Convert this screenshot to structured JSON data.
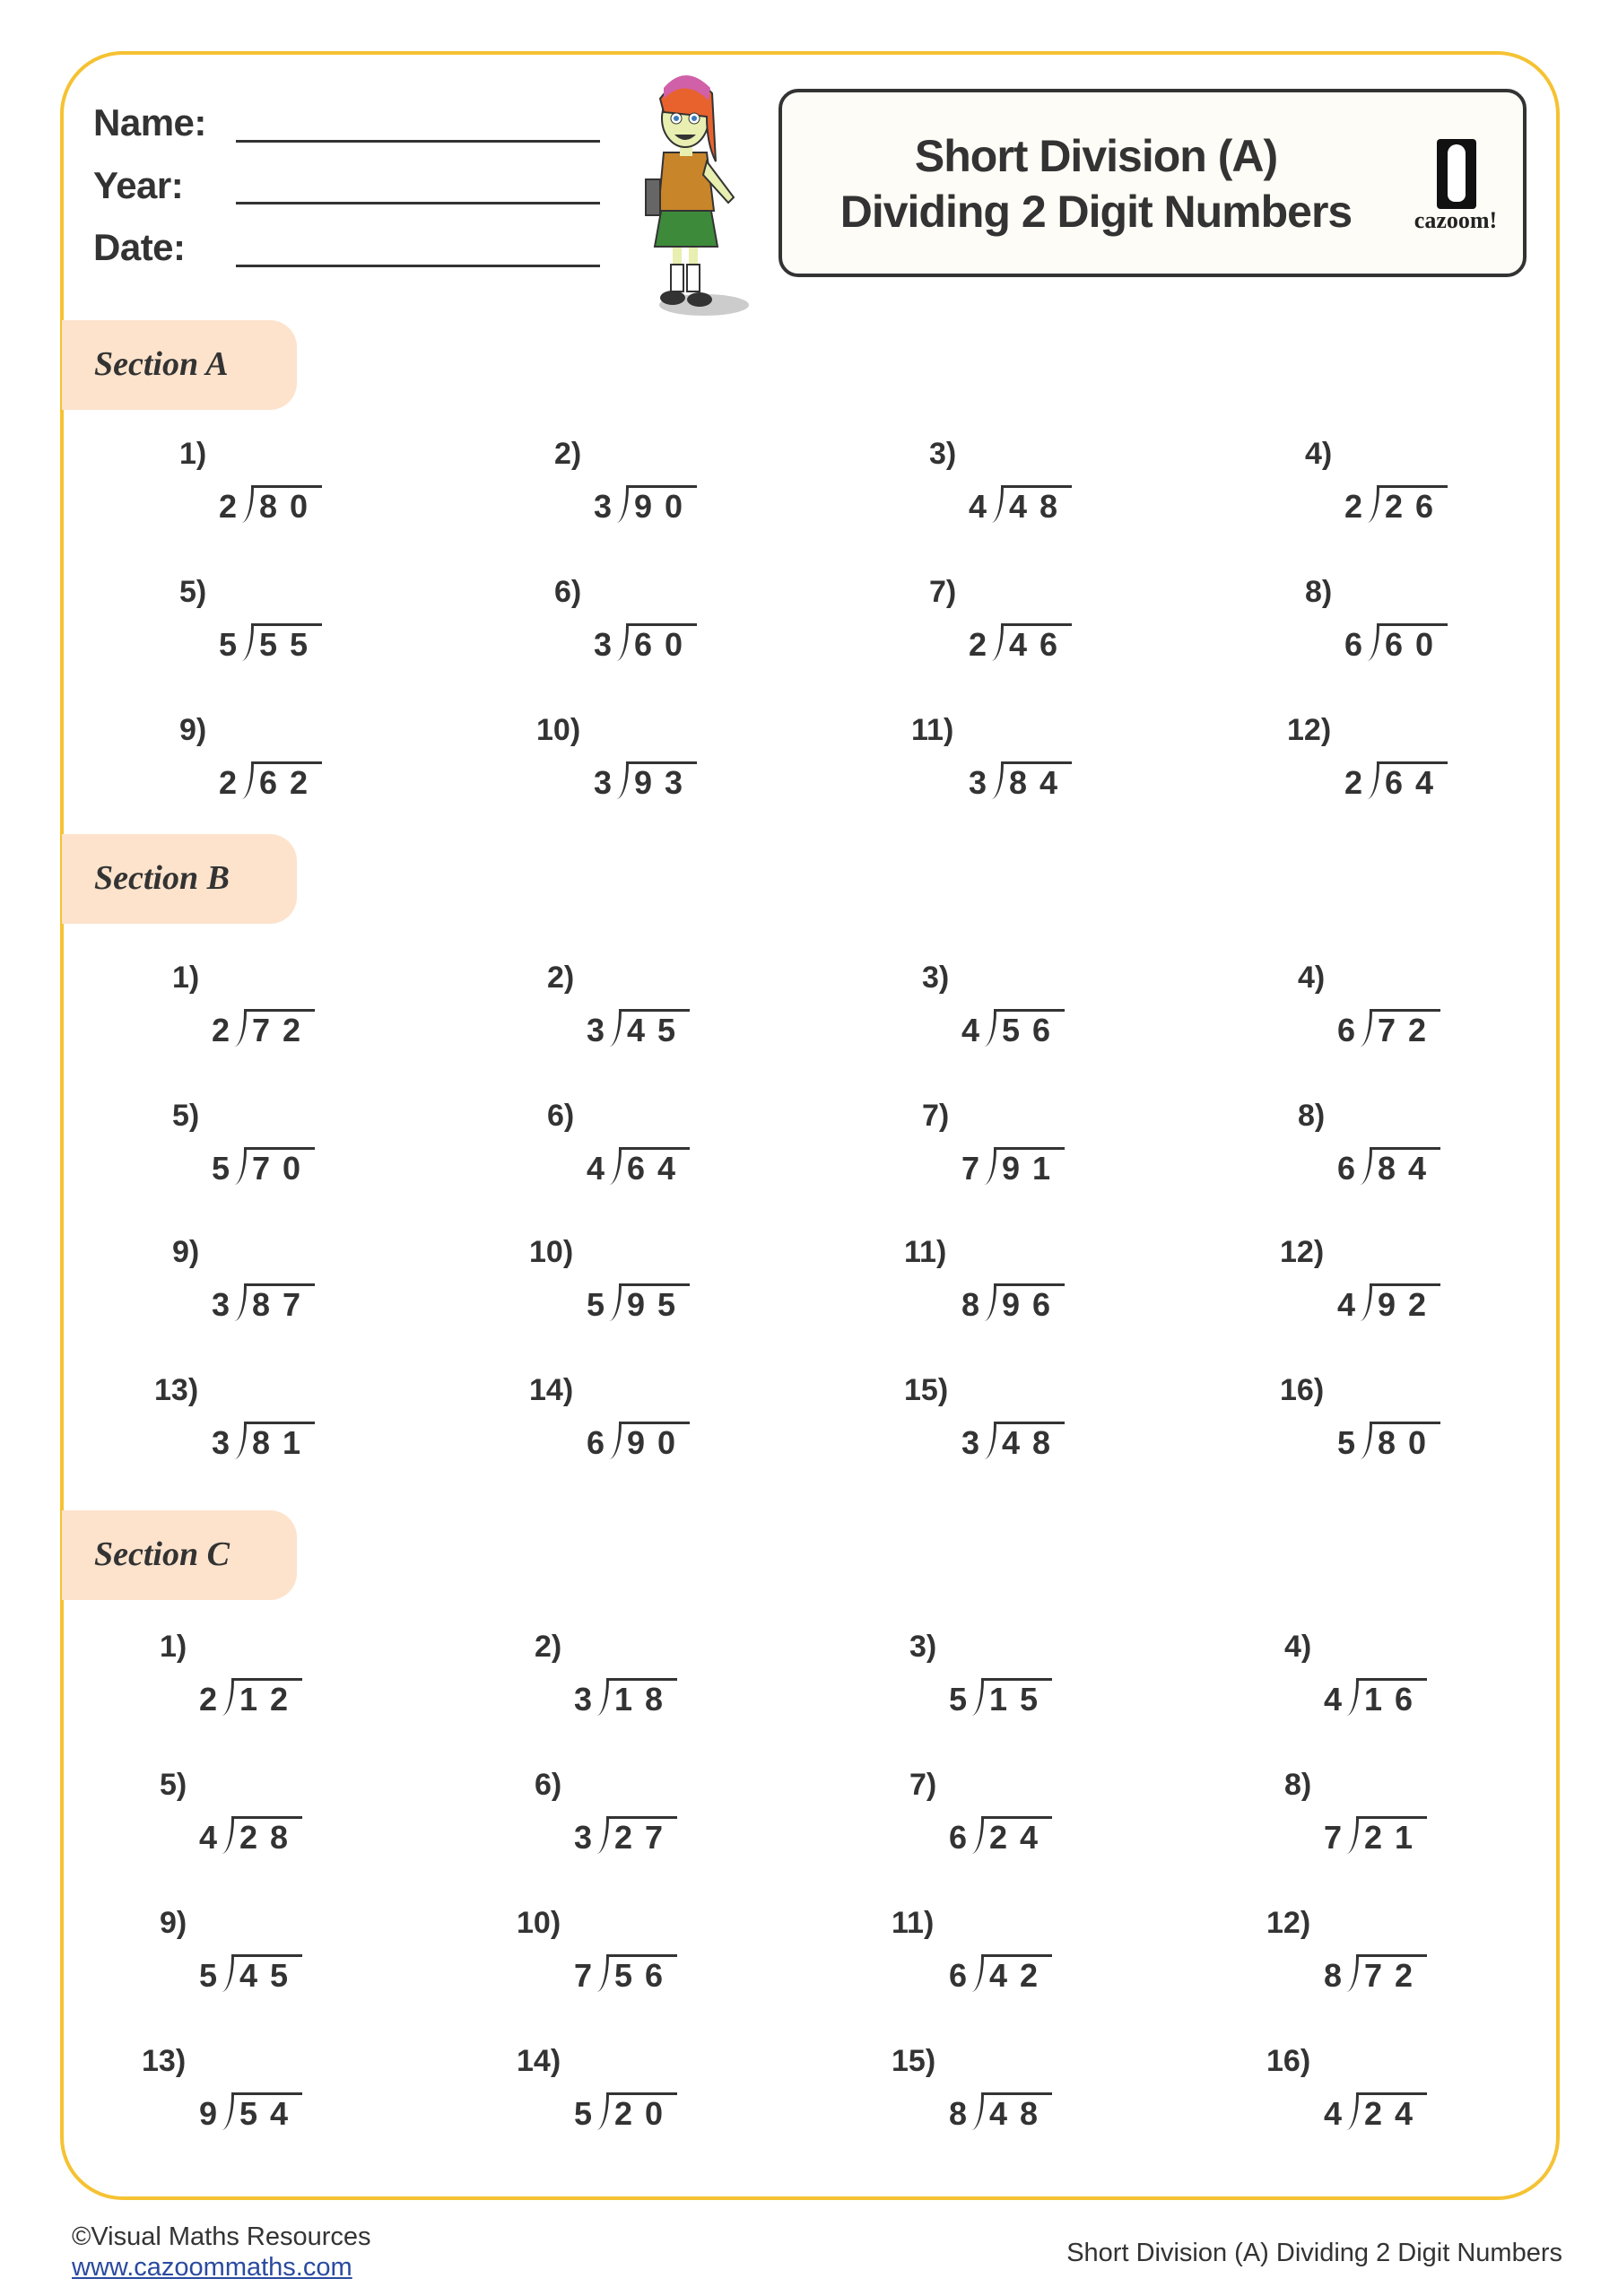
{
  "header": {
    "fields": [
      "Name:",
      "Year:",
      "Date:"
    ],
    "title_line1": "Short Division (A)",
    "title_line2": "Dividing 2 Digit Numbers",
    "logo_text": "cazoom!"
  },
  "colors": {
    "border": "#f5c232",
    "section_pill": "#fde3cc",
    "title_box": "#fdfcf6",
    "link": "#2a4aa0"
  },
  "sections": [
    {
      "label": "Section A",
      "problems": [
        [
          "1)",
          "2",
          "80"
        ],
        [
          "2)",
          "3",
          "90"
        ],
        [
          "3)",
          "4",
          "48"
        ],
        [
          "4)",
          "2",
          "26"
        ],
        [
          "5)",
          "5",
          "55"
        ],
        [
          "6)",
          "3",
          "60"
        ],
        [
          "7)",
          "2",
          "46"
        ],
        [
          "8)",
          "6",
          "60"
        ],
        [
          "9)",
          "2",
          "62"
        ],
        [
          "10)",
          "3",
          "93"
        ],
        [
          "11)",
          "3",
          "84"
        ],
        [
          "12)",
          "2",
          "64"
        ]
      ]
    },
    {
      "label": "Section B",
      "problems": [
        [
          "1)",
          "2",
          "72"
        ],
        [
          "2)",
          "3",
          "45"
        ],
        [
          "3)",
          "4",
          "56"
        ],
        [
          "4)",
          "6",
          "72"
        ],
        [
          "5)",
          "5",
          "70"
        ],
        [
          "6)",
          "4",
          "64"
        ],
        [
          "7)",
          "7",
          "91"
        ],
        [
          "8)",
          "6",
          "84"
        ],
        [
          "9)",
          "3",
          "87"
        ],
        [
          "10)",
          "5",
          "95"
        ],
        [
          "11)",
          "8",
          "96"
        ],
        [
          "12)",
          "4",
          "92"
        ],
        [
          "13)",
          "3",
          "81"
        ],
        [
          "14)",
          "6",
          "90"
        ],
        [
          "15)",
          "3",
          "48"
        ],
        [
          "16)",
          "5",
          "80"
        ]
      ]
    },
    {
      "label": "Section C",
      "problems": [
        [
          "1)",
          "2",
          "12"
        ],
        [
          "2)",
          "3",
          "18"
        ],
        [
          "3)",
          "5",
          "15"
        ],
        [
          "4)",
          "4",
          "16"
        ],
        [
          "5)",
          "4",
          "28"
        ],
        [
          "6)",
          "3",
          "27"
        ],
        [
          "7)",
          "6",
          "24"
        ],
        [
          "8)",
          "7",
          "21"
        ],
        [
          "9)",
          "5",
          "45"
        ],
        [
          "10)",
          "7",
          "56"
        ],
        [
          "11)",
          "6",
          "42"
        ],
        [
          "12)",
          "8",
          "72"
        ],
        [
          "13)",
          "9",
          "54"
        ],
        [
          "14)",
          "5",
          "20"
        ],
        [
          "15)",
          "8",
          "48"
        ],
        [
          "16)",
          "4",
          "24"
        ]
      ]
    }
  ],
  "footer": {
    "copyright": "©Visual Maths Resources",
    "website": "www.cazoommaths.com",
    "doc_title": "Short Division (A) Dividing 2 Digit Numbers"
  }
}
